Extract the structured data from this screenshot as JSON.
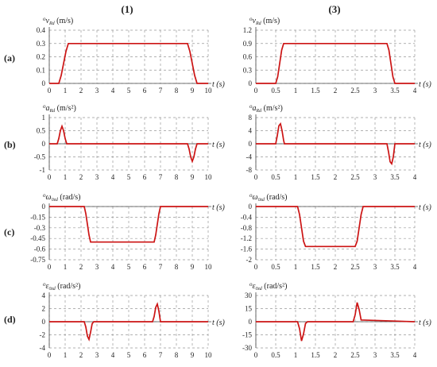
{
  "columns": [
    "(1)",
    "(3)"
  ],
  "rows": [
    "(a)",
    "(b)",
    "(c)",
    "(d)"
  ],
  "chart_data": [
    {
      "id": "a1",
      "type": "line",
      "row": 0,
      "col": 0,
      "ylabel": {
        "sup": "o",
        "sym": "v",
        "sub": "Rd",
        "unit": "(m/s)"
      },
      "xlabel": "t (s)",
      "xlim": [
        0,
        10
      ],
      "xticks": [
        0,
        1,
        2,
        3,
        4,
        5,
        6,
        7,
        8,
        9,
        10
      ],
      "ylim": [
        0,
        0.4
      ],
      "yticks": [
        "0",
        "0.1",
        "0.2",
        "0.3",
        "0.4"
      ],
      "series": [
        {
          "x": [
            0,
            0.6,
            0.75,
            0.9,
            1.05,
            1.2,
            8.7,
            8.85,
            9.0,
            9.15,
            9.3,
            10
          ],
          "y": [
            0,
            0,
            0.06,
            0.15,
            0.24,
            0.3,
            0.3,
            0.24,
            0.15,
            0.06,
            0,
            0
          ]
        }
      ]
    },
    {
      "id": "a3",
      "type": "line",
      "row": 0,
      "col": 1,
      "ylabel": {
        "sup": "o",
        "sym": "v",
        "sub": "Rd",
        "unit": "(m/s)"
      },
      "xlabel": "t (s)",
      "xlim": [
        0,
        4
      ],
      "xticks": [
        0,
        0.5,
        1,
        1.5,
        2,
        2.5,
        3,
        3.5,
        4
      ],
      "ylim": [
        0,
        1.2
      ],
      "yticks": [
        "0",
        "0.3",
        "0.6",
        "0.9",
        "1.2"
      ],
      "series": [
        {
          "x": [
            0,
            0.5,
            0.55,
            0.6,
            0.65,
            0.7,
            3.3,
            3.35,
            3.4,
            3.45,
            3.5,
            4
          ],
          "y": [
            0,
            0,
            0.15,
            0.45,
            0.75,
            0.9,
            0.9,
            0.75,
            0.45,
            0.15,
            0,
            0
          ]
        }
      ]
    },
    {
      "id": "b1",
      "type": "line",
      "row": 1,
      "col": 0,
      "ylabel": {
        "sup": "o",
        "sym": "a",
        "sub": "Rd",
        "unit": "(m/s²)"
      },
      "xlabel": "t (s)",
      "xlim": [
        0,
        10
      ],
      "xticks": [
        0,
        1,
        2,
        3,
        4,
        5,
        6,
        7,
        8,
        9,
        10
      ],
      "ylim": [
        -1,
        1
      ],
      "yticks": [
        "1",
        "0.5",
        "0",
        "-0.5",
        "-1"
      ],
      "yvals": [
        1,
        0.5,
        0,
        -0.5,
        -1
      ],
      "series": [
        {
          "x": [
            0,
            0.5,
            0.6,
            0.7,
            0.8,
            0.9,
            1.0,
            1.1,
            1.2,
            8.7,
            8.8,
            8.9,
            9.0,
            9.1,
            9.2,
            9.3,
            9.4,
            10
          ],
          "y": [
            0,
            0,
            0.2,
            0.5,
            0.67,
            0.5,
            0.2,
            0,
            0,
            0,
            -0.2,
            -0.5,
            -0.67,
            -0.5,
            -0.2,
            0,
            0,
            0
          ]
        }
      ]
    },
    {
      "id": "b3",
      "type": "line",
      "row": 1,
      "col": 1,
      "ylabel": {
        "sup": "o",
        "sym": "a",
        "sub": "Rd",
        "unit": "(m/s²)"
      },
      "xlabel": "t (s)",
      "xlim": [
        0,
        4
      ],
      "xticks": [
        0,
        0.5,
        1,
        1.5,
        2,
        2.5,
        3,
        3.5,
        4
      ],
      "ylim": [
        -8,
        8
      ],
      "yticks": [
        "8",
        "4",
        "0",
        "-4",
        "-8"
      ],
      "yvals": [
        8,
        4,
        0,
        -4,
        -8
      ],
      "series": [
        {
          "x": [
            0,
            0.5,
            0.54,
            0.58,
            0.62,
            0.66,
            0.7,
            0.72,
            3.28,
            3.3,
            3.34,
            3.38,
            3.42,
            3.46,
            3.5,
            4
          ],
          "y": [
            0,
            0,
            2.5,
            5.5,
            6.1,
            4,
            1,
            0,
            0,
            0,
            -2.5,
            -5.5,
            -6.1,
            -4,
            0,
            0
          ]
        }
      ]
    },
    {
      "id": "c1",
      "type": "line",
      "row": 2,
      "col": 0,
      "ylabel": {
        "sup": "o",
        "sym": "ω",
        "sub": "0zd",
        "unit": "(rad/s)"
      },
      "xlabel": "t (s)",
      "xlim": [
        0,
        10
      ],
      "xticks": [
        0,
        1,
        2,
        3,
        4,
        5,
        6,
        7,
        8,
        9,
        10
      ],
      "ylim": [
        -0.75,
        0
      ],
      "yticks": [
        "0",
        "-0.15",
        "-0.3",
        "-0.45",
        "-0.6",
        "-0.75"
      ],
      "yvals": [
        0,
        -0.15,
        -0.3,
        -0.45,
        -0.6,
        -0.75
      ],
      "series": [
        {
          "x": [
            0,
            2.2,
            2.3,
            2.4,
            2.5,
            2.6,
            6.6,
            6.7,
            6.8,
            6.9,
            7.0,
            10
          ],
          "y": [
            0,
            0,
            -0.1,
            -0.25,
            -0.4,
            -0.5,
            -0.5,
            -0.4,
            -0.25,
            -0.1,
            0,
            0
          ]
        }
      ]
    },
    {
      "id": "c3",
      "type": "line",
      "row": 2,
      "col": 1,
      "ylabel": {
        "sup": "o",
        "sym": "ω",
        "sub": "0zd",
        "unit": "(rad/s)"
      },
      "xlabel": "t (s)",
      "xlim": [
        0,
        4
      ],
      "xticks": [
        0,
        0.5,
        1,
        1.5,
        2,
        2.5,
        3,
        3.5,
        4
      ],
      "ylim": [
        -2,
        0
      ],
      "yticks": [
        "0",
        "-0.4",
        "-0.8",
        "-1.2",
        "-1.6",
        "-2"
      ],
      "yvals": [
        0,
        -0.4,
        -0.8,
        -1.2,
        -1.6,
        -2
      ],
      "series": [
        {
          "x": [
            0,
            1.05,
            1.1,
            1.15,
            1.2,
            1.25,
            2.5,
            2.55,
            2.6,
            2.65,
            2.7,
            4
          ],
          "y": [
            0,
            0,
            -0.3,
            -0.8,
            -1.3,
            -1.5,
            -1.5,
            -1.3,
            -0.8,
            -0.3,
            0,
            0
          ]
        }
      ]
    },
    {
      "id": "d1",
      "type": "line",
      "row": 3,
      "col": 0,
      "ylabel": {
        "sup": "o",
        "sym": "ε",
        "sub": "0zd",
        "unit": "(rad/s²)"
      },
      "xlabel": "t (s)",
      "xlim": [
        0,
        10
      ],
      "xticks": [
        0,
        1,
        2,
        3,
        4,
        5,
        6,
        7,
        8,
        9,
        10
      ],
      "ylim": [
        -4,
        4
      ],
      "yticks": [
        "4",
        "2",
        "0",
        "-2",
        "-4"
      ],
      "yvals": [
        4,
        2,
        0,
        -2,
        -4
      ],
      "series": [
        {
          "x": [
            0,
            2.2,
            2.3,
            2.4,
            2.5,
            2.6,
            2.7,
            2.8,
            6.5,
            6.6,
            6.7,
            6.8,
            6.9,
            7.0,
            10
          ],
          "y": [
            0,
            0,
            -0.8,
            -2.2,
            -2.7,
            -1.6,
            -0.3,
            0,
            0,
            0.8,
            2.2,
            2.7,
            1.6,
            0,
            0
          ]
        }
      ]
    },
    {
      "id": "d3",
      "type": "line",
      "row": 3,
      "col": 1,
      "ylabel": {
        "sup": "o",
        "sym": "ε",
        "sub": "0zd",
        "unit": "(rad/s²)"
      },
      "xlabel": "t (s)",
      "xlim": [
        0,
        4
      ],
      "xticks": [
        0,
        0.5,
        1,
        1.5,
        2,
        2.5,
        3,
        3.5,
        4
      ],
      "ylim": [
        -30,
        30
      ],
      "yticks": [
        "30",
        "15",
        "0",
        "-15",
        "-30"
      ],
      "yvals": [
        30,
        15,
        0,
        -15,
        -30
      ],
      "series": [
        {
          "x": [
            0,
            1.05,
            1.1,
            1.15,
            1.2,
            1.25,
            1.3,
            2.45,
            2.5,
            2.55,
            2.6,
            2.65,
            4
          ],
          "y": [
            0,
            0,
            -8,
            -22,
            -14,
            -2,
            0,
            0,
            8,
            22,
            14,
            2,
            0
          ]
        }
      ]
    }
  ],
  "colors": {
    "curve": "#cc1414",
    "grid": "#999999",
    "axis": "#444444"
  }
}
